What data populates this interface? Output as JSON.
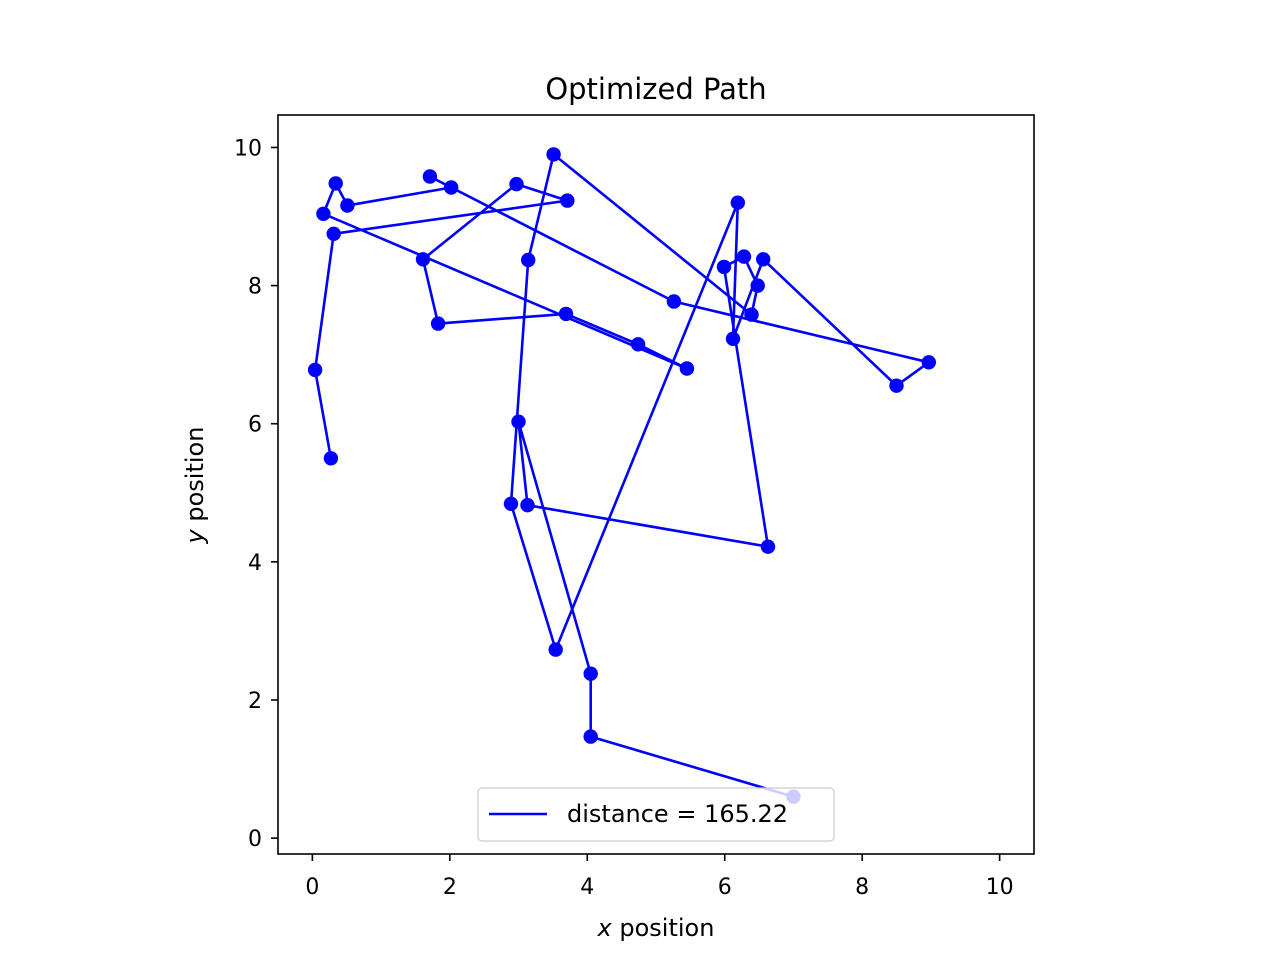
{
  "chart_data": {
    "type": "line",
    "title": "Optimized Path",
    "xlabel_var": "x",
    "xlabel_rest": " position",
    "ylabel_var": "y",
    "ylabel_rest": " position",
    "xlim": [
      -0.5,
      10.5
    ],
    "ylim": [
      -0.23,
      10.47
    ],
    "xticks": [
      0,
      2,
      4,
      6,
      8,
      10
    ],
    "yticks": [
      0,
      2,
      4,
      6,
      8,
      10
    ],
    "grid": false,
    "legend_position": "lower center",
    "color": "#0000ff",
    "series": [
      {
        "name": "distance = 165.22",
        "points": [
          [
            7.0,
            0.6
          ],
          [
            4.05,
            1.47
          ],
          [
            4.05,
            2.38
          ],
          [
            3.0,
            6.03
          ],
          [
            3.13,
            4.82
          ],
          [
            6.63,
            4.22
          ],
          [
            5.99,
            8.27
          ],
          [
            6.28,
            8.42
          ],
          [
            6.48,
            8.0
          ],
          [
            6.39,
            7.58
          ],
          [
            3.51,
            9.9
          ],
          [
            3.14,
            8.37
          ],
          [
            2.89,
            4.84
          ],
          [
            3.54,
            2.73
          ],
          [
            6.19,
            9.2
          ],
          [
            6.12,
            7.23
          ],
          [
            6.56,
            8.38
          ],
          [
            8.5,
            6.55
          ],
          [
            8.97,
            6.89
          ],
          [
            5.26,
            7.77
          ],
          [
            1.71,
            9.58
          ],
          [
            2.02,
            9.42
          ],
          [
            0.51,
            9.16
          ],
          [
            0.34,
            9.48
          ],
          [
            0.16,
            9.04
          ],
          [
            5.45,
            6.8
          ],
          [
            4.74,
            7.15
          ],
          [
            3.69,
            7.59
          ],
          [
            1.83,
            7.45
          ],
          [
            1.61,
            8.38
          ],
          [
            2.97,
            9.47
          ],
          [
            3.71,
            9.23
          ],
          [
            0.31,
            8.75
          ],
          [
            0.04,
            6.78
          ],
          [
            0.27,
            5.5
          ]
        ]
      }
    ]
  }
}
